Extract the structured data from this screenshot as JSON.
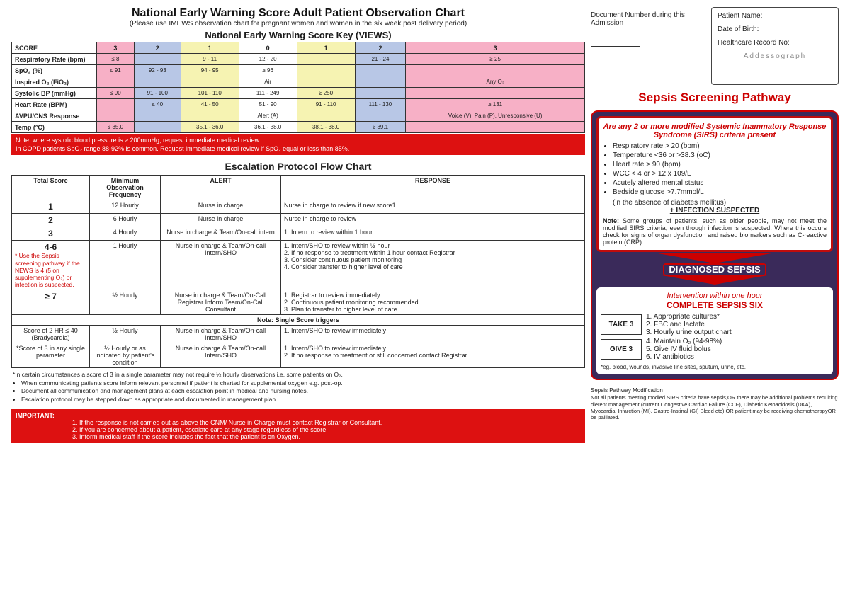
{
  "title": "National Early Warning Score Adult Patient Observation Chart",
  "subtitle": "(Please use IMEWS observation chart for pregnant women and women in the six week post delivery period)",
  "key_heading": "National Early Warning Score Key (VIEWS)",
  "colors": {
    "s3": "#f7b0c6",
    "s2": "#b8c7e6",
    "s1": "#f6f3b2",
    "s0": "#ffffff"
  },
  "key": {
    "scores": [
      "3",
      "2",
      "1",
      "0",
      "1",
      "2",
      "3"
    ],
    "rows": [
      {
        "label": "Respiratory Rate (bpm)",
        "cells": [
          "≤ 8",
          "",
          "9 - 11",
          "12 - 20",
          "",
          "21 - 24",
          "≥ 25"
        ]
      },
      {
        "label": "SpO₂ (%)",
        "cells": [
          "≤ 91",
          "92 - 93",
          "94 - 95",
          "≥ 96",
          "",
          "",
          ""
        ]
      },
      {
        "label": "Inspired O₂ (FiO₂)",
        "cells": [
          "",
          "",
          "",
          "Air",
          "",
          "",
          "Any O₂"
        ]
      },
      {
        "label": "Systolic BP (mmHg)",
        "cells": [
          "≤ 90",
          "91 - 100",
          "101 - 110",
          "111 - 249",
          "≥ 250",
          "",
          ""
        ]
      },
      {
        "label": "Heart Rate (BPM)",
        "cells": [
          "",
          "≤ 40",
          "41 - 50",
          "51 - 90",
          "91 - 110",
          "111 - 130",
          "≥ 131"
        ]
      },
      {
        "label": "AVPU/CNS Response",
        "cells": [
          "",
          "",
          "",
          "Alert (A)",
          "",
          "",
          "Voice (V), Pain (P), Unresponsive (U)"
        ]
      },
      {
        "label": "Temp (°C)",
        "cells": [
          "≤ 35.0",
          "",
          "35.1 - 36.0",
          "36.1 - 38.0",
          "38.1 - 38.0",
          "≥ 39.1",
          ""
        ]
      }
    ]
  },
  "note_red_1": "Note: where systolic blood pressure is ≥ 200mmHg, request immediate medical review.",
  "note_red_2": "In COPD patients SpO₂ range 88-92% is common. Request immediate medical review if SpO₂ equal or less than 85%.",
  "esc_heading": "Escalation Protocol Flow Chart",
  "esc_headers": [
    "Total Score",
    "Minimum Observation Frequency",
    "ALERT",
    "RESPONSE"
  ],
  "esc_rows": [
    {
      "score": "1",
      "freq": "12 Hourly",
      "alert": "Nurse in charge",
      "resp": "Nurse in charge to review if new score1"
    },
    {
      "score": "2",
      "freq": "6 Hourly",
      "alert": "Nurse in charge",
      "resp": "Nurse in charge to review"
    },
    {
      "score": "3",
      "freq": "4 Hourly",
      "alert": "Nurse in charge & Team/On-call intern",
      "resp": "1. Intern to review within 1 hour"
    },
    {
      "score": "4-6",
      "score_note": "* Use the Sepsis screening pathway if the NEWS is 4 (5 on supplementing O₂) or infection is suspected.",
      "freq": "1 Hourly",
      "alert": "Nurse in charge & Team/On-call Intern/SHO",
      "resp": "1. Intern/SHO to review within ½ hour\n2. If no response to treatment within 1 hour contact Registrar\n3. Consider continuous patient monitoring\n4. Consider transfer to higher level of care"
    },
    {
      "score": "≥ 7",
      "freq": "½ Hourly",
      "alert": "Nurse in charge & Team/On-Call Registrar Inform Team/On-Call Consultant",
      "resp": "1. Registrar to review immediately\n2. Continuous patient monitoring recommended\n3. Plan to transfer to higher level of care"
    }
  ],
  "single_trigger_label": "Note: Single Score triggers",
  "single_rows": [
    {
      "score": "Score of 2 HR ≤ 40 (Bradycardia)",
      "freq": "½ Hourly",
      "alert": "Nurse in charge & Team/On-call Intern/SHO",
      "resp": "1. Intern/SHO to review immediately"
    },
    {
      "score": "*Score of 3 in any single parameter",
      "freq": "½ Hourly or as indicated by patient's condition",
      "alert": "Nurse in charge & Team/On-call Intern/SHO",
      "resp": "1. Intern/SHO to review immediately\n2. If no response to treatment or still concerned contact Registrar"
    }
  ],
  "foot_star": "*In certain circumstances a score of 3 in a single parameter may not require ½ hourly observations i.e. some patients on O₂.",
  "foot_bullets": [
    "When communicating patients score inform relevant personnel if patient is charted for supplemental oxygen e.g. post-op.",
    "Document all communication and management plans at each escalation point in medical and nursing notes.",
    "Escalation protocol may be stepped down as appropriate and documented in management plan."
  ],
  "important_label": "IMPORTANT:",
  "important_items": [
    "1. If the response is not carried out as above the CNM/ Nurse in Charge must contact Registrar or Consultant.",
    "2. If you are concerned about a patient, escalate care at any stage regardless of the score.",
    "3. Inform medical staff if the score includes the fact that the patient is on Oxygen."
  ],
  "patient": {
    "name_label": "Patient Name:",
    "dob_label": "Date of Birth:",
    "hrn_label": "Healthcare Record No:",
    "addr": "Addessograph"
  },
  "docnum_label": "Document Number during this Admission",
  "sepsis_title": "Sepsis Screening Pathway",
  "sirs": {
    "hdr": "Are any 2 or more modified Systemic Inammatory Response Syndrome (SIRS) criteria present",
    "items": [
      "Respiratory rate > 20 (bpm)",
      "Temperature <36 or >38.3 (oC)",
      "Heart rate > 90 (bpm)",
      "WCC < 4 or > 12 x 109/L",
      "Acutely altered mental status",
      "Bedside glucose  >7.7mmol/L"
    ],
    "item_sub": "(in the absence of diabetes mellitus)",
    "inf": "+ INFECTION SUSPECTED",
    "note": "Note: Some groups of patients, such as older people, may not meet the modified SIRS criteria, even though infection is suspected. Where this occurs check for signs of organ dysfunction and raised biomarkers such as C-reactive protein (CRP)"
  },
  "diag": "DIAGNOSED SEPSIS",
  "six": {
    "hdr1": "Intervention within one hour",
    "hdr2": "COMPLETE SEPSIS SIX",
    "take": "TAKE 3",
    "give": "GIVE 3",
    "take_items": [
      "1. Appropriate cultures*",
      "2. FBC and lactate",
      "3. Hourly urine output chart"
    ],
    "give_items": [
      "4. Maintain O₂ (94-98%)",
      "5. Give IV fluid bolus",
      "6. IV antibiotics"
    ],
    "foot": "*eg. blood, wounds, invasive line sites, sputum, urine, etc."
  },
  "pathfoot_title": "Sepsis Pathway Modification",
  "pathfoot": "Not all patients meeting modied SIRS criteria have sepsis,OR there may be additional problems requiring dierent management (current Congestive Cardiac Failure (CCF), Diabetic Ketoacidosis (DKA), Myocardial Infarction (MI), Gastro-Instinal (GI) Bleed etc) OR patient may be receiving chemotherapyOR be palliated."
}
